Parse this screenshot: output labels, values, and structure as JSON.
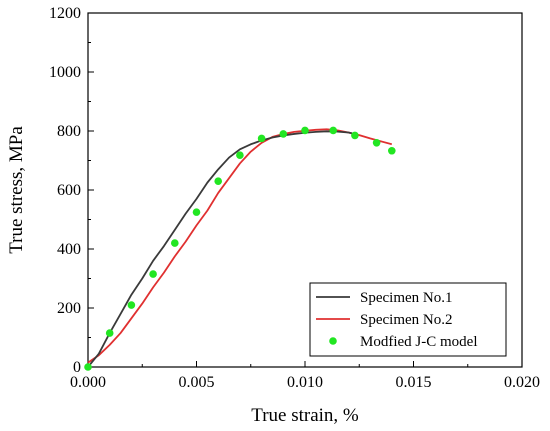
{
  "chart_data": {
    "type": "line",
    "xlabel": "True strain, %",
    "ylabel": "True stress, MPa",
    "xlim": [
      0.0,
      0.02
    ],
    "ylim": [
      0,
      1200
    ],
    "x_ticks": [
      "0.000",
      "0.005",
      "0.010",
      "0.015",
      "0.020"
    ],
    "y_ticks": [
      "0",
      "200",
      "400",
      "600",
      "800",
      "1000",
      "1200"
    ],
    "grid": false,
    "legend_position": "bottom-right",
    "series": [
      {
        "name": "Specimen No.1",
        "kind": "line",
        "color": "#3a3a3a",
        "points": [
          [
            0.0,
            0
          ],
          [
            0.0005,
            45
          ],
          [
            0.001,
            115
          ],
          [
            0.0015,
            180
          ],
          [
            0.002,
            245
          ],
          [
            0.0025,
            300
          ],
          [
            0.003,
            360
          ],
          [
            0.0035,
            410
          ],
          [
            0.004,
            465
          ],
          [
            0.0045,
            520
          ],
          [
            0.005,
            570
          ],
          [
            0.0055,
            625
          ],
          [
            0.006,
            670
          ],
          [
            0.0065,
            710
          ],
          [
            0.007,
            738
          ],
          [
            0.0075,
            755
          ],
          [
            0.008,
            768
          ],
          [
            0.0085,
            778
          ],
          [
            0.009,
            785
          ],
          [
            0.0095,
            790
          ],
          [
            0.01,
            794
          ],
          [
            0.0105,
            797
          ],
          [
            0.011,
            799
          ],
          [
            0.0115,
            798
          ],
          [
            0.012,
            795
          ],
          [
            0.0123,
            790
          ]
        ]
      },
      {
        "name": "Specimen No.2",
        "kind": "line",
        "color": "#e03030",
        "points": [
          [
            0.0,
            15
          ],
          [
            0.0005,
            40
          ],
          [
            0.001,
            75
          ],
          [
            0.0015,
            115
          ],
          [
            0.002,
            165
          ],
          [
            0.0025,
            215
          ],
          [
            0.003,
            270
          ],
          [
            0.0035,
            320
          ],
          [
            0.004,
            375
          ],
          [
            0.0045,
            425
          ],
          [
            0.005,
            480
          ],
          [
            0.0055,
            530
          ],
          [
            0.006,
            590
          ],
          [
            0.0065,
            640
          ],
          [
            0.007,
            690
          ],
          [
            0.0075,
            730
          ],
          [
            0.008,
            760
          ],
          [
            0.0085,
            780
          ],
          [
            0.009,
            790
          ],
          [
            0.0095,
            797
          ],
          [
            0.01,
            801
          ],
          [
            0.0105,
            804
          ],
          [
            0.011,
            806
          ],
          [
            0.0115,
            802
          ],
          [
            0.012,
            795
          ],
          [
            0.0125,
            786
          ],
          [
            0.013,
            775
          ],
          [
            0.0135,
            765
          ],
          [
            0.014,
            755
          ]
        ]
      },
      {
        "name": "Modfied J-C model",
        "kind": "scatter",
        "color": "#22e622",
        "points": [
          [
            0.0,
            0
          ],
          [
            0.001,
            115
          ],
          [
            0.002,
            210
          ],
          [
            0.003,
            315
          ],
          [
            0.004,
            420
          ],
          [
            0.005,
            525
          ],
          [
            0.006,
            630
          ],
          [
            0.007,
            718
          ],
          [
            0.008,
            775
          ],
          [
            0.009,
            790
          ],
          [
            0.01,
            802
          ],
          [
            0.0113,
            802
          ],
          [
            0.0123,
            785
          ],
          [
            0.0133,
            760
          ],
          [
            0.014,
            733
          ]
        ]
      }
    ]
  }
}
